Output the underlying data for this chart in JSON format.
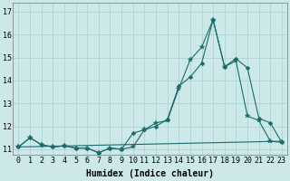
{
  "xlabel": "Humidex (Indice chaleur)",
  "bg_color": "#cce8e8",
  "grid_color": "#aacfcf",
  "line_color": "#1a6b6b",
  "xlim": [
    -0.5,
    23.5
  ],
  "ylim": [
    10.75,
    17.4
  ],
  "yticks": [
    11,
    12,
    13,
    14,
    15,
    16,
    17
  ],
  "xticks": [
    0,
    1,
    2,
    3,
    4,
    5,
    6,
    7,
    8,
    9,
    10,
    11,
    12,
    13,
    14,
    15,
    16,
    17,
    18,
    19,
    20,
    21,
    22,
    23
  ],
  "series1_x": [
    0,
    1,
    2,
    3,
    4,
    5,
    6,
    7,
    8,
    9,
    10,
    11,
    12,
    13,
    14,
    15,
    16,
    17,
    18,
    19,
    20,
    21,
    22,
    23
  ],
  "series1_y": [
    11.1,
    11.5,
    11.2,
    11.1,
    11.15,
    11.05,
    11.05,
    10.85,
    11.05,
    11.0,
    11.1,
    11.85,
    12.15,
    12.25,
    13.65,
    14.9,
    15.45,
    16.65,
    14.6,
    14.85,
    12.45,
    12.25,
    11.35,
    11.3
  ],
  "series2_x": [
    0,
    1,
    2,
    3,
    4,
    5,
    6,
    7,
    8,
    9,
    10,
    11,
    12,
    13,
    14,
    15,
    16,
    17,
    18,
    19,
    20,
    21,
    22,
    23
  ],
  "series2_y": [
    11.1,
    11.5,
    11.2,
    11.1,
    11.15,
    11.05,
    11.05,
    10.85,
    11.05,
    11.0,
    11.7,
    11.85,
    12.0,
    12.3,
    13.75,
    14.15,
    14.75,
    16.65,
    14.6,
    14.95,
    14.55,
    12.35,
    12.15,
    11.3
  ],
  "series3_x": [
    0,
    23
  ],
  "series3_y": [
    11.1,
    11.35
  ],
  "font_size_label": 7,
  "font_size_tick": 6,
  "marker_size1": 4,
  "marker_size2": 2.5
}
